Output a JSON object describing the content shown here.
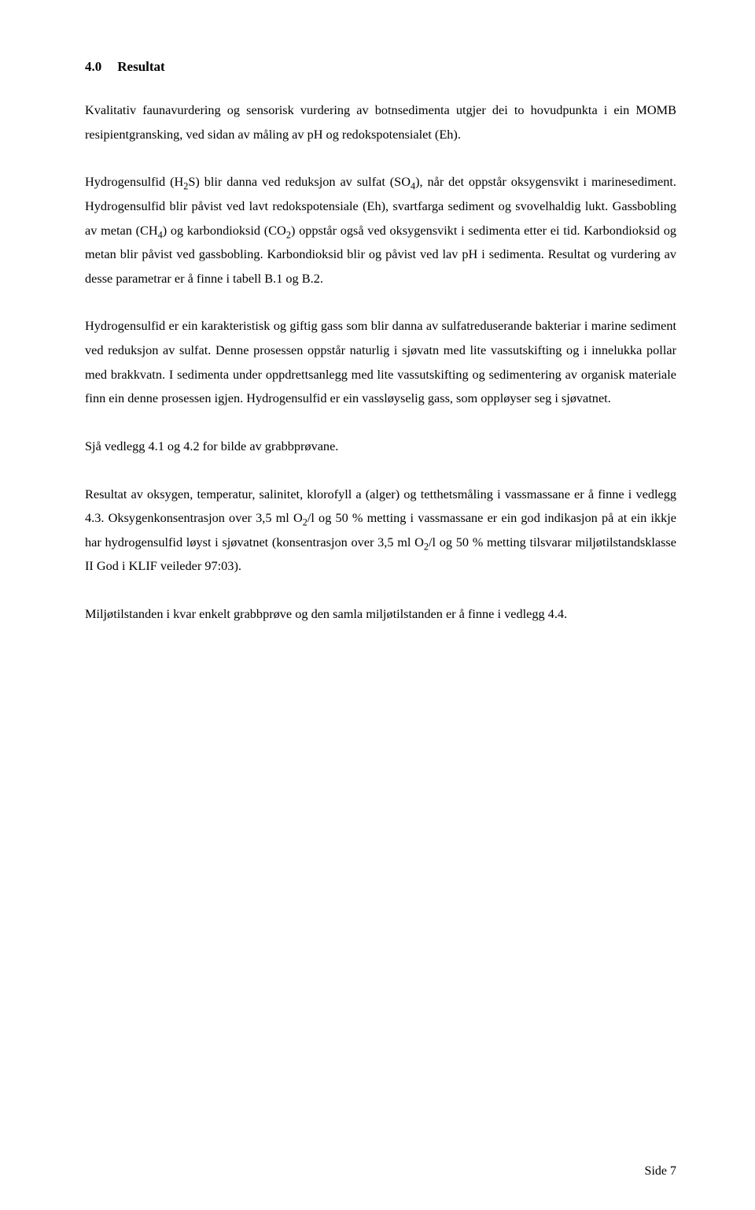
{
  "heading": {
    "number": "4.0",
    "title": "Resultat"
  },
  "paragraphs": {
    "p1": "Kvalitativ faunavurdering og sensorisk vurdering av botnsedimenta utgjer dei to hovudpunkta i ein MOMB resipientgransking, ved sidan av måling av pH og redokspotensialet (Eh).",
    "p2a": "Hydrogensulfid (H",
    "p2b": "S) blir danna ved reduksjon av sulfat (SO",
    "p2c": "), når det oppstår oksygensvikt i marinesediment. Hydrogensulfid blir påvist ved lavt redokspotensiale (Eh), svartfarga sediment og svovelhaldig lukt. Gassbobling av metan (CH",
    "p2d": ") og karbondioksid (CO",
    "p2e": ") oppstår også ved oksygensvikt i sedimenta etter ei tid. Karbondioksid og metan blir påvist ved gassbobling. Karbondioksid blir og påvist ved lav pH i sedimenta. Resultat og vurdering av desse parametrar er å finne i tabell B.1 og B.2.",
    "p3": "Hydrogensulfid er ein karakteristisk og giftig gass som blir danna av sulfatreduserande bakteriar i marine sediment ved reduksjon av sulfat. Denne prosessen oppstår naturlig i sjøvatn med lite vassutskifting og i innelukka pollar med brakkvatn. I sedimenta under oppdrettsanlegg med lite vassutskifting og sedimentering av organisk materiale finn ein denne prosessen igjen. Hydrogensulfid er ein vassløyselig gass, som oppløyser seg i sjøvatnet.",
    "p4": "Sjå vedlegg 4.1 og 4.2 for bilde av grabbprøvane.",
    "p5a": "Resultat av oksygen, temperatur, salinitet, klorofyll a (alger) og tetthetsmåling i vassmassane er å finne i vedlegg 4.3. Oksygenkonsentrasjon over 3,5 ml O",
    "p5b": "/l og 50 % metting  i vassmassane er ein god indikasjon på at ein ikkje har hydrogensulfid løyst i sjøvatnet (konsentrasjon over 3,5 ml O",
    "p5c": "/l og 50 % metting tilsvarar miljøtilstandsklasse II God i KLIF veileder 97:03).",
    "p6": "Miljøtilstanden i kvar enkelt grabbprøve og den samla miljøtilstanden er å finne i vedlegg 4.4."
  },
  "sub": {
    "two": "2",
    "four": "4"
  },
  "footer": "Side 7"
}
